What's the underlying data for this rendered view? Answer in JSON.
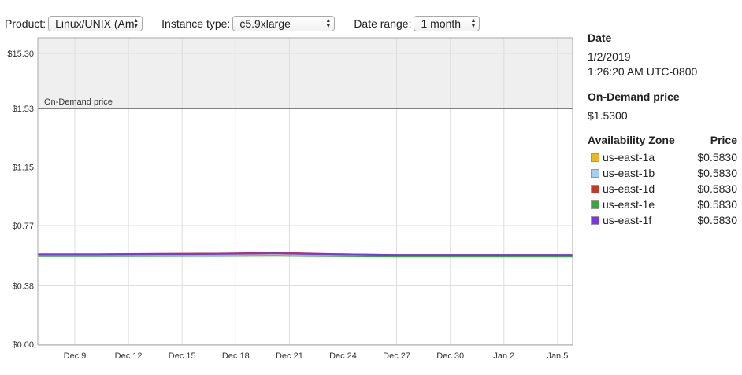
{
  "controls": {
    "product": {
      "label": "Product:",
      "value": "Linux/UNIX (Am"
    },
    "instance_type": {
      "label": "Instance type:",
      "value": "c5.9xlarge"
    },
    "date_range": {
      "label": "Date range:",
      "value": "1 month"
    }
  },
  "chart_data": {
    "type": "line",
    "y_tick_labels": [
      "$15.30",
      "$1.53",
      "$1.15",
      "$0.77",
      "$0.38",
      "$0.00"
    ],
    "x_tick_labels": [
      "Dec 9",
      "Dec 12",
      "Dec 15",
      "Dec 18",
      "Dec 21",
      "Dec 24",
      "Dec 27",
      "Dec 30",
      "Jan 2",
      "Jan 5"
    ],
    "reference_line": {
      "label": "On-Demand price",
      "value": 1.53
    },
    "series": [
      {
        "name": "us-east-1a",
        "color": "#e8b923",
        "values": [
          0.583,
          0.583,
          0.585,
          0.586,
          0.588,
          0.583,
          0.578,
          0.578,
          0.578,
          0.578
        ]
      },
      {
        "name": "us-east-1b",
        "color": "#a9cdf0",
        "values": [
          0.583,
          0.584,
          0.586,
          0.587,
          0.589,
          0.584,
          0.579,
          0.579,
          0.579,
          0.579
        ]
      },
      {
        "name": "us-east-1d",
        "color": "#c0392b",
        "values": [
          0.585,
          0.585,
          0.588,
          0.589,
          0.594,
          0.586,
          0.58,
          0.58,
          0.58,
          0.58
        ]
      },
      {
        "name": "us-east-1e",
        "color": "#3aa63a",
        "values": [
          0.572,
          0.572,
          0.573,
          0.574,
          0.575,
          0.572,
          0.57,
          0.57,
          0.57,
          0.57
        ]
      },
      {
        "name": "us-east-1f",
        "color": "#7b35e8",
        "values": [
          0.584,
          0.584,
          0.586,
          0.587,
          0.59,
          0.585,
          0.581,
          0.581,
          0.581,
          0.581
        ]
      }
    ]
  },
  "details": {
    "date_heading": "Date",
    "date_line1": "1/2/2019",
    "date_line2": "1:26:20 AM UTC-0800",
    "ondemand_heading": "On-Demand price",
    "ondemand_value": "$1.5300",
    "az_heading": "Availability Zone",
    "price_heading": "Price",
    "zones": [
      {
        "name": "us-east-1a",
        "price": "$0.5830",
        "color": "#e8b923"
      },
      {
        "name": "us-east-1b",
        "price": "$0.5830",
        "color": "#a9cdf0"
      },
      {
        "name": "us-east-1d",
        "price": "$0.5830",
        "color": "#c0392b"
      },
      {
        "name": "us-east-1e",
        "price": "$0.5830",
        "color": "#3aa63a"
      },
      {
        "name": "us-east-1f",
        "price": "$0.5830",
        "color": "#7b35e8"
      }
    ]
  }
}
